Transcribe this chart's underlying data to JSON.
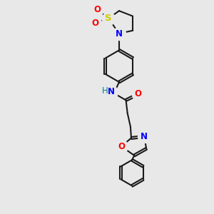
{
  "bg_color": "#e8e8e8",
  "atom_colors": {
    "C": "#1a1a1a",
    "N": "#0000ff",
    "O": "#ff0000",
    "S": "#cccc00",
    "H": "#008080",
    "default": "#1a1a1a"
  },
  "bond_color": "#1a1a1a",
  "bond_width": 1.5,
  "font_size_atom": 8.5
}
